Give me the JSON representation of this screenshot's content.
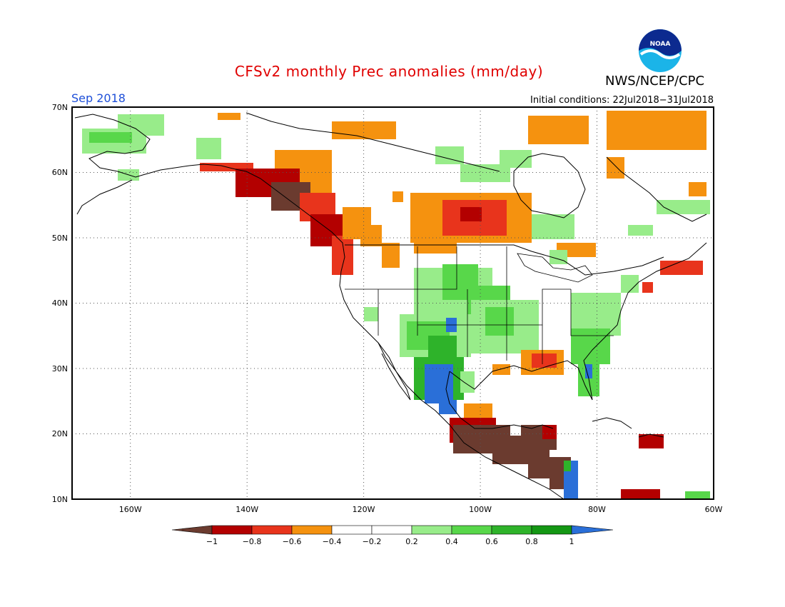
{
  "header": {
    "title": "CFSv2 monthly Prec anomalies (mm/day)",
    "agency": "NWS/NCEP/CPC",
    "month": "Sep 2018",
    "initial_conditions": "Initial conditions: 22Jul2018−31Jul2018",
    "logo_text": "NOAA"
  },
  "map": {
    "projection": "equirectangular",
    "lon_range": [
      -170,
      -60
    ],
    "lat_range": [
      10,
      70
    ],
    "lat_labels": [
      "10N",
      "20N",
      "30N",
      "40N",
      "50N",
      "60N",
      "70N"
    ],
    "lon_labels": [
      "160W",
      "140W",
      "120W",
      "100W",
      "80W",
      "60W"
    ],
    "grid": "dotted"
  },
  "legend": {
    "tick_labels": [
      "−1",
      "−0.8",
      "−0.6",
      "−0.4",
      "−0.2",
      "0.2",
      "0.4",
      "0.6",
      "0.8",
      "1"
    ],
    "colors": [
      "#6b3b2f",
      "#b30000",
      "#e8341c",
      "#f5920f",
      "#ffffff",
      "#98ec8a",
      "#58d74a",
      "#2eb32a",
      "#149714",
      "#2a6fd8"
    ]
  },
  "colors": {
    "title": "#e00000",
    "month_label": "#1e4fd8",
    "coast": "#000000"
  }
}
